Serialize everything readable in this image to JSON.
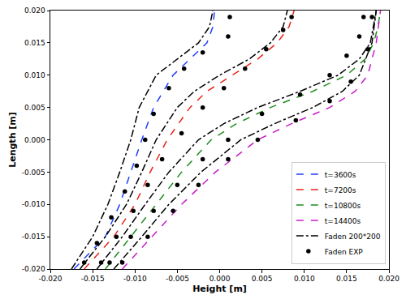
{
  "chart_data": {
    "type": "line",
    "x_label": "Height [m]",
    "y_label": "Length [m]",
    "xlim": [
      -0.02,
      0.02
    ],
    "ylim": [
      -0.02,
      0.02
    ],
    "xticks": [
      {
        "value": -0.02,
        "label": "-0.020"
      },
      {
        "value": -0.015,
        "label": "-0.015"
      },
      {
        "value": -0.01,
        "label": "-0.010"
      },
      {
        "value": -0.005,
        "label": "-0.005"
      },
      {
        "value": 0.0,
        "label": "0.000"
      },
      {
        "value": 0.005,
        "label": "0.005"
      },
      {
        "value": 0.01,
        "label": "0.010"
      },
      {
        "value": 0.015,
        "label": "0.015"
      },
      {
        "value": 0.02,
        "label": "0.020"
      }
    ],
    "yticks": [
      {
        "value": -0.02,
        "label": "-0.020"
      },
      {
        "value": -0.015,
        "label": "-0.015"
      },
      {
        "value": -0.01,
        "label": "-0.010"
      },
      {
        "value": -0.005,
        "label": "-0.005"
      },
      {
        "value": 0.0,
        "label": "0.000"
      },
      {
        "value": 0.005,
        "label": "0.005"
      },
      {
        "value": 0.01,
        "label": "0.010"
      },
      {
        "value": 0.015,
        "label": "0.015"
      },
      {
        "value": 0.02,
        "label": "0.020"
      }
    ],
    "grid": false,
    "legend": "lower right",
    "series": [
      {
        "name": "t=3600s",
        "color": "#1f3fff",
        "line_style": "dashed",
        "type": "line",
        "x": [
          -0.0172,
          -0.0135,
          -0.0118,
          -0.0105,
          -0.0092,
          -0.0078,
          -0.0055,
          -0.0035,
          -0.0015,
          -0.0008,
          -0.0006
        ],
        "values": [
          -0.02,
          -0.015,
          -0.01,
          -0.005,
          0.0,
          0.005,
          0.01,
          0.0125,
          0.015,
          0.0175,
          0.02
        ]
      },
      {
        "name": "t=7200s",
        "color": "#e8251b",
        "line_style": "dashed",
        "type": "line",
        "x": [
          -0.016,
          -0.0125,
          -0.01,
          -0.0082,
          -0.0062,
          -0.0035,
          -0.0015,
          0.0015,
          0.0045,
          0.0068,
          0.0082,
          0.0088
        ],
        "values": [
          -0.02,
          -0.015,
          -0.01,
          -0.005,
          0.0,
          0.005,
          0.0075,
          0.01,
          0.0125,
          0.015,
          0.0175,
          0.02
        ]
      },
      {
        "name": "t=10800s",
        "color": "#1e8c1e",
        "line_style": "dashed",
        "type": "line",
        "x": [
          -0.0135,
          -0.0105,
          -0.0075,
          -0.0045,
          -0.001,
          0.002,
          0.006,
          0.011,
          0.015,
          0.0172,
          0.0182,
          0.0187,
          0.019
        ],
        "values": [
          -0.02,
          -0.015,
          -0.01,
          -0.005,
          0.0,
          0.0025,
          0.005,
          0.0075,
          0.01,
          0.0125,
          0.015,
          0.0175,
          0.02
        ]
      },
      {
        "name": "t=14400s",
        "color": "#c71fc7",
        "line_style": "dashed",
        "type": "line",
        "x": [
          -0.0115,
          -0.008,
          -0.0045,
          -0.0005,
          0.0045,
          0.0085,
          0.013,
          0.016,
          0.0175,
          0.0185,
          0.019
        ],
        "values": [
          -0.02,
          -0.015,
          -0.01,
          -0.005,
          0.0,
          0.0025,
          0.005,
          0.0075,
          0.01,
          0.015,
          0.02
        ]
      },
      {
        "name": "Faden 200*200",
        "color": "#000000",
        "line_style": "dashdot",
        "type": "line",
        "x": [
          -0.0175,
          -0.015,
          -0.0132,
          -0.0118,
          -0.0105,
          -0.0095,
          -0.0075,
          -0.005,
          -0.0025,
          -0.0012,
          -0.0008,
          null,
          -0.0165,
          -0.0135,
          -0.011,
          -0.0092,
          -0.0075,
          -0.005,
          -0.003,
          0.0,
          0.0035,
          0.006,
          0.0075,
          0.008,
          null,
          -0.0145,
          -0.0115,
          -0.0088,
          -0.006,
          -0.0025,
          0.0005,
          0.0045,
          0.0095,
          0.014,
          0.0165,
          0.0178,
          0.0185,
          null,
          -0.0125,
          -0.0092,
          -0.006,
          -0.0022,
          0.0025,
          0.0065,
          0.011,
          0.0145,
          0.0165,
          0.018,
          0.0185
        ],
        "values": [
          -0.02,
          -0.015,
          -0.01,
          -0.005,
          0.0,
          0.005,
          0.01,
          0.0125,
          0.015,
          0.0175,
          0.02,
          null,
          -0.02,
          -0.015,
          -0.01,
          -0.005,
          0.0,
          0.005,
          0.0075,
          0.01,
          0.0125,
          0.015,
          0.0175,
          0.02,
          null,
          -0.02,
          -0.015,
          -0.01,
          -0.005,
          0.0,
          0.0025,
          0.005,
          0.0075,
          0.01,
          0.0125,
          0.015,
          0.02,
          null,
          -0.02,
          -0.015,
          -0.01,
          -0.005,
          0.0,
          0.0025,
          0.005,
          0.0075,
          0.01,
          0.015,
          0.02
        ]
      },
      {
        "name": "Faden EXP",
        "color": "#000000",
        "type": "scatter",
        "marker": "circle",
        "x": [
          -0.016,
          -0.0145,
          -0.0128,
          -0.0112,
          -0.0098,
          -0.0088,
          -0.0078,
          -0.006,
          -0.0042,
          -0.002,
          0.001,
          0.0012,
          -0.014,
          -0.0122,
          -0.0102,
          -0.0085,
          -0.0068,
          -0.0045,
          -0.002,
          0.0005,
          0.003,
          0.0055,
          0.0075,
          0.0085,
          -0.013,
          -0.0105,
          -0.0078,
          -0.005,
          -0.002,
          0.001,
          0.005,
          0.0095,
          0.013,
          0.015,
          0.0165,
          0.017,
          -0.0115,
          -0.0085,
          -0.0055,
          -0.0025,
          0.001,
          0.0045,
          0.009,
          0.013,
          0.0155,
          0.0175,
          0.018
        ],
        "values": [
          -0.019,
          -0.016,
          -0.012,
          -0.008,
          -0.004,
          0.0,
          0.004,
          0.008,
          0.011,
          0.0135,
          0.016,
          0.019,
          -0.019,
          -0.015,
          -0.011,
          -0.007,
          -0.003,
          0.001,
          0.005,
          0.008,
          0.011,
          0.014,
          0.017,
          0.019,
          -0.019,
          -0.015,
          -0.011,
          -0.007,
          -0.003,
          0.0,
          0.004,
          0.007,
          0.01,
          0.013,
          0.016,
          0.019,
          -0.019,
          -0.015,
          -0.011,
          -0.007,
          -0.003,
          0.0,
          0.003,
          0.006,
          0.009,
          0.014,
          0.019
        ]
      }
    ]
  }
}
